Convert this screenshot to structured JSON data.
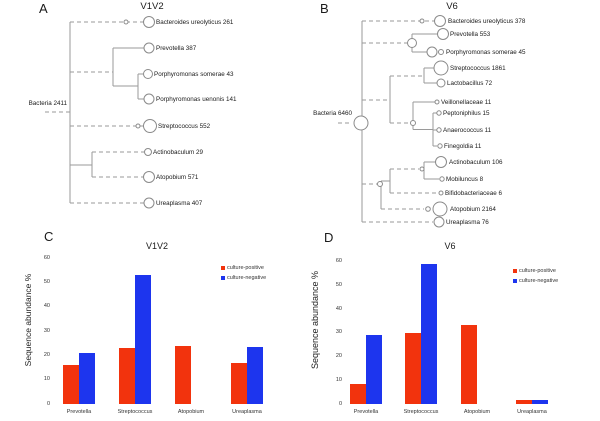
{
  "panels": {
    "A": {
      "letter": "A",
      "title": "V1V2",
      "root_label": "Bacteria 2411",
      "leaves": [
        "Bacteroides ureolyticus 261",
        "Prevotella 387",
        "Porphyromonas somerae 43",
        "Porphyromonas uenonis 141",
        "Streptococcus 552",
        "Actinobaculum 29",
        "Atopobium 571",
        "Ureaplasma 407"
      ]
    },
    "B": {
      "letter": "B",
      "title": "V6",
      "root_label": "Bacteria 6460",
      "leaves": [
        "Bacteroides ureolyticus 378",
        "Prevotella 553",
        "Porphyromonas somerae 45",
        "Streptococcus 1861",
        "Lactobacillus 72",
        "Veillonellaceae 11",
        "Peptoniphilus 15",
        "Anaerococcus 11",
        "Finegoldia 11",
        "Actinobaculum 106",
        "Mobiluncus 8",
        "Bifidobacteriaceae 6",
        "Atopobium 2164",
        "Ureaplasma 76"
      ]
    },
    "C": {
      "letter": "C"
    },
    "D": {
      "letter": "D"
    }
  },
  "chart_data": [
    {
      "type": "bar",
      "panel": "C",
      "title": "V1V2",
      "xlabel": "",
      "ylabel": "Sequence abundance %",
      "ylim": [
        0,
        60
      ],
      "yticks": [
        0,
        10,
        20,
        30,
        40,
        50,
        60
      ],
      "grid": false,
      "legend_position": "top-right",
      "categories": [
        "Prevotella",
        "Streptococcus",
        "Atopobium",
        "Ureaplasma"
      ],
      "series": [
        {
          "name": "culture-positive",
          "color": "#f2330d",
          "values": [
            16,
            23,
            24,
            17
          ]
        },
        {
          "name": "culture-negative",
          "color": "#1d35ee",
          "values": [
            21,
            53,
            null,
            23.5
          ]
        }
      ]
    },
    {
      "type": "bar",
      "panel": "D",
      "title": "V6",
      "xlabel": "",
      "ylabel": "Sequence abundance %",
      "ylim": [
        0,
        60
      ],
      "yticks": [
        0,
        10,
        20,
        30,
        40,
        50,
        60
      ],
      "grid": false,
      "legend_position": "top-right",
      "categories": [
        "Prevotella",
        "Streptococcus",
        "Atopobium",
        "Ureaplasma"
      ],
      "series": [
        {
          "name": "culture-positive",
          "color": "#f2330d",
          "values": [
            8.5,
            30,
            33.5,
            1.5
          ]
        },
        {
          "name": "culture-negative",
          "color": "#1d35ee",
          "values": [
            29,
            59,
            null,
            1.5
          ]
        }
      ]
    }
  ]
}
